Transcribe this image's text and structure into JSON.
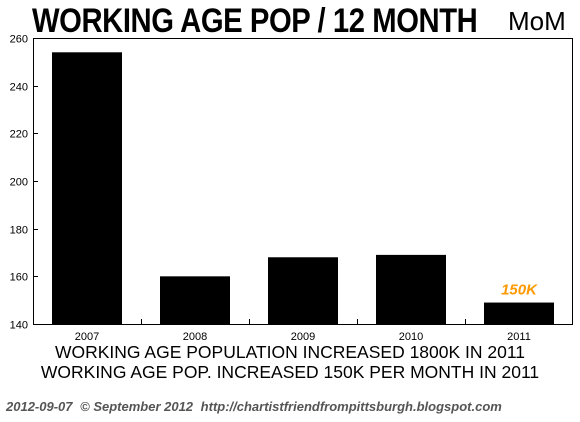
{
  "header": {
    "title": "WORKING AGE POP / 12 MONTH",
    "subtitle": "MoM"
  },
  "notes": {
    "line1": "WORKING AGE POPULATION INCREASED 1800K IN 2011",
    "line2": "WORKING AGE POP. INCREASED 150K PER MONTH IN 2011"
  },
  "footer": {
    "date": "2012-09-07",
    "copyright": "© September 2012",
    "url": "http://chartistfriendfrompittsburgh.blogspot.com"
  },
  "chart_data": {
    "type": "bar",
    "title": "WORKING AGE POP / 12 MONTH",
    "subtitle": "MoM",
    "categories": [
      "2007",
      "2008",
      "2009",
      "2010",
      "2011"
    ],
    "values": [
      254,
      160,
      168,
      169,
      149
    ],
    "ylim": [
      140,
      260
    ],
    "yticks": [
      140,
      160,
      180,
      200,
      220,
      240,
      260
    ],
    "grid": false,
    "bar_color": "#000000",
    "annotation": {
      "text": "150K",
      "category": "2011",
      "color": "#ff9900"
    }
  }
}
